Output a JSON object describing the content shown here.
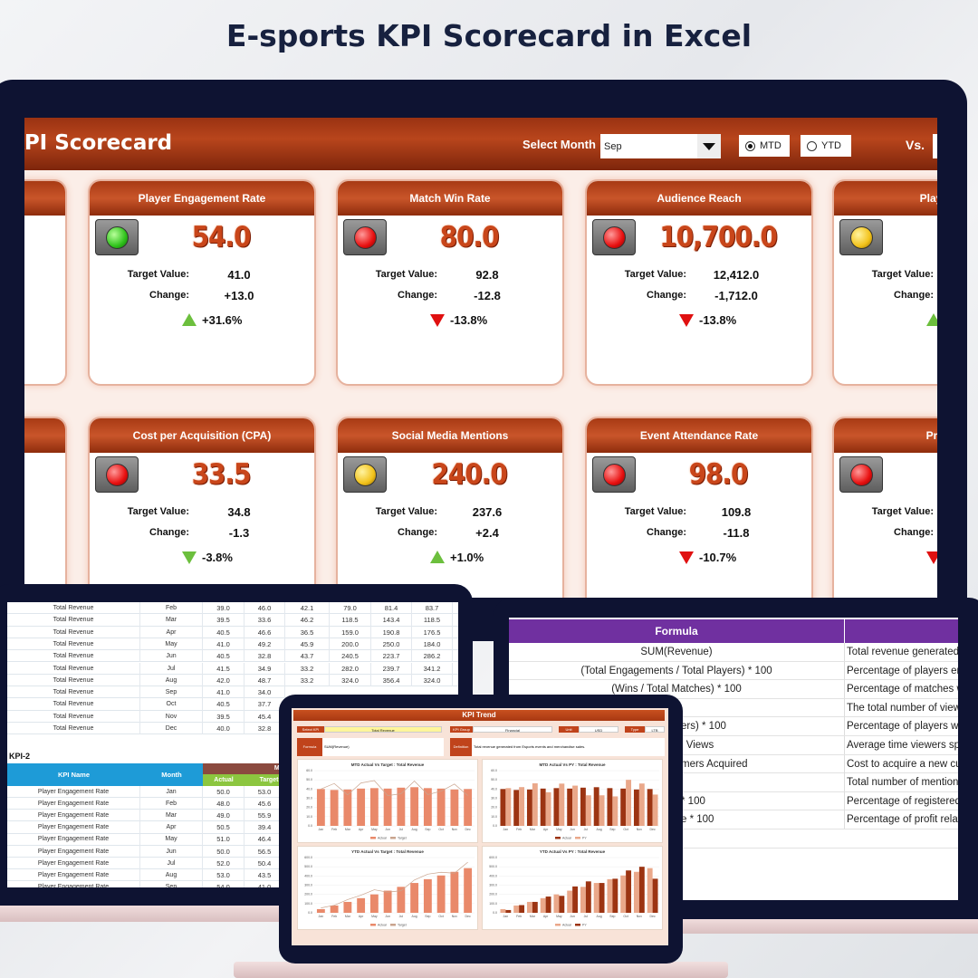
{
  "title": "E-sports KPI Scorecard in Excel",
  "dashboard": {
    "title": "KPI Scorecard",
    "select_month_label": "Select Month",
    "month_value": "Sep",
    "mode_options": [
      {
        "label": "MTD",
        "selected": true
      },
      {
        "label": "YTD",
        "selected": false
      }
    ],
    "vs_label": "Vs.",
    "target_label": "Target Value:",
    "change_label": "Change:",
    "colors": {
      "up": "#6cbf3d",
      "down": "#e01010",
      "green_light": "#3fcf2a",
      "red_light": "#e81010",
      "yellow_light": "#f2c21a"
    },
    "cards": [
      {
        "title": "Player Engagement Rate",
        "value": "54.0",
        "target": "41.0",
        "change": "+13.0",
        "pct": "+31.6%",
        "direction": "up",
        "light": "green"
      },
      {
        "title": "Match Win Rate",
        "value": "80.0",
        "target": "92.8",
        "change": "-12.8",
        "pct": "-13.8%",
        "direction": "down",
        "light": "red"
      },
      {
        "title": "Audience Reach",
        "value": "10,700.0",
        "target": "12,412.0",
        "change": "-1,712.0",
        "pct": "-13.8%",
        "direction": "down",
        "light": "red"
      },
      {
        "title": "Player Ret",
        "value": "",
        "target": "",
        "change": "",
        "pct": "",
        "direction": "up",
        "light": "yellow"
      },
      {
        "title": "Cost per Acquisition (CPA)",
        "value": "33.5",
        "target": "34.8",
        "change": "-1.3",
        "pct": "-3.8%",
        "direction": "down-good",
        "light": "red"
      },
      {
        "title": "Social Media Mentions",
        "value": "240.0",
        "target": "237.6",
        "change": "+2.4",
        "pct": "+1.0%",
        "direction": "up",
        "light": "yellow"
      },
      {
        "title": "Event Attendance Rate",
        "value": "98.0",
        "target": "109.8",
        "change": "-11.8",
        "pct": "-10.7%",
        "direction": "down",
        "light": "red"
      },
      {
        "title": "Profit M",
        "value": "",
        "target": "",
        "change": "",
        "pct": "",
        "direction": "down",
        "light": "red"
      }
    ]
  },
  "data_sheet": {
    "kpi1_rows": [
      {
        "name": "Total Revenue",
        "month": "Feb",
        "v": [
          "39.0",
          "46.0",
          "42.1",
          "79.0",
          "81.4",
          "83.7"
        ]
      },
      {
        "name": "Total Revenue",
        "month": "Mar",
        "v": [
          "39.5",
          "33.6",
          "46.2",
          "118.5",
          "143.4",
          "118.5"
        ]
      },
      {
        "name": "Total Revenue",
        "month": "Apr",
        "v": [
          "40.5",
          "46.6",
          "36.5",
          "159.0",
          "190.8",
          "176.5"
        ]
      },
      {
        "name": "Total Revenue",
        "month": "May",
        "v": [
          "41.0",
          "49.2",
          "45.9",
          "200.0",
          "250.0",
          "184.0"
        ]
      },
      {
        "name": "Total Revenue",
        "month": "Jun",
        "v": [
          "40.5",
          "32.8",
          "43.7",
          "240.5",
          "223.7",
          "286.2"
        ]
      },
      {
        "name": "Total Revenue",
        "month": "Jul",
        "v": [
          "41.5",
          "34.9",
          "33.2",
          "282.0",
          "239.7",
          "341.2"
        ]
      },
      {
        "name": "Total Revenue",
        "month": "Aug",
        "v": [
          "42.0",
          "48.7",
          "33.2",
          "324.0",
          "356.4",
          "324.0"
        ]
      },
      {
        "name": "Total Revenue",
        "month": "Sep",
        "v": [
          "41.0",
          "34.0"
        ]
      },
      {
        "name": "Total Revenue",
        "month": "Oct",
        "v": [
          "40.5",
          "37.7"
        ]
      },
      {
        "name": "Total Revenue",
        "month": "Nov",
        "v": [
          "39.5",
          "45.4"
        ]
      },
      {
        "name": "Total Revenue",
        "month": "Dec",
        "v": [
          "40.0",
          "32.8"
        ]
      }
    ],
    "kpi2_label": "KPI-2",
    "kpi2_headers": {
      "name": "KPI Name",
      "month": "Month",
      "group": "MTD",
      "actual": "Actual",
      "target": "Target"
    },
    "kpi2_rows": [
      {
        "name": "Player Engagement Rate",
        "month": "Jan",
        "v": [
          "50.0",
          "53.0"
        ]
      },
      {
        "name": "Player Engagement Rate",
        "month": "Feb",
        "v": [
          "48.0",
          "45.6"
        ]
      },
      {
        "name": "Player Engagement Rate",
        "month": "Mar",
        "v": [
          "49.0",
          "55.9"
        ]
      },
      {
        "name": "Player Engagement Rate",
        "month": "Apr",
        "v": [
          "50.5",
          "39.4"
        ]
      },
      {
        "name": "Player Engagement Rate",
        "month": "May",
        "v": [
          "51.0",
          "46.4"
        ]
      },
      {
        "name": "Player Engagement Rate",
        "month": "Jun",
        "v": [
          "50.0",
          "56.5"
        ]
      },
      {
        "name": "Player Engagement Rate",
        "month": "Jul",
        "v": [
          "52.0",
          "50.4"
        ]
      },
      {
        "name": "Player Engagement Rate",
        "month": "Aug",
        "v": [
          "53.0",
          "43.5"
        ]
      },
      {
        "name": "Player Engagement Rate",
        "month": "Sep",
        "v": [
          "54.0",
          "41.0"
        ]
      }
    ]
  },
  "definitions": {
    "header": "Formula",
    "rows": [
      {
        "formula": "SUM(Revenue)",
        "partial": false,
        "desc": "Total revenue generated f"
      },
      {
        "formula": "(Total Engagements / Total Players) * 100",
        "partial": false,
        "desc": "Percentage of players en"
      },
      {
        "formula": "(Wins / Total Matches) * 100",
        "partial": false,
        "desc": "Percentage of matches w"
      },
      {
        "formula": "",
        "partial": true,
        "desc": "The total number of view"
      },
      {
        "formula": "ers) * 100",
        "partial": true,
        "desc": "Percentage of players wh"
      },
      {
        "formula": "l Views",
        "partial": true,
        "desc": "Average time viewers spe"
      },
      {
        "formula": "mers Acquired",
        "partial": true,
        "desc": "Cost to acquire a new cu"
      },
      {
        "formula": "",
        "partial": true,
        "desc": "Total number of mention"
      },
      {
        "formula": "* 100",
        "partial": true,
        "desc": "Percentage of registered"
      },
      {
        "formula": "e * 100",
        "partial": true,
        "desc": "Percentage of profit relat"
      },
      {
        "formula": "",
        "partial": true,
        "desc": ""
      }
    ]
  },
  "trend": {
    "title": "KPI Trend",
    "select_kpi_label": "Select KPI",
    "select_kpi": "Total Revenue",
    "group_label": "KPI Group",
    "group": "Financial",
    "unit_label": "Unit",
    "unit": "USD",
    "type_label": "Type",
    "type": "LTB",
    "formula_label": "Formula",
    "formula": "SUM(Revenue)",
    "definition_label": "Definition",
    "definition": "Total revenue generated from Esports events and merchandise sales."
  },
  "chart_data": [
    {
      "type": "bar",
      "title": "MTD Actual Vs Target : Total Revenue",
      "categories": [
        "Jan",
        "Feb",
        "Mar",
        "Apr",
        "May",
        "Jun",
        "Jul",
        "Aug",
        "Sep",
        "Oct",
        "Nov",
        "Dec"
      ],
      "ylim": [
        0,
        60
      ],
      "yticks": [
        "0.0",
        "10.0",
        "20.0",
        "30.0",
        "40.0",
        "50.0",
        "60.0"
      ],
      "series": [
        {
          "name": "Actual",
          "kind": "bar",
          "color": "#e9896a",
          "values": [
            40,
            39,
            39.5,
            40.5,
            41,
            40.5,
            41.5,
            42,
            41,
            40.5,
            39.5,
            40
          ]
        },
        {
          "name": "Target",
          "kind": "line",
          "color": "#c9a48e",
          "values": [
            40,
            46,
            33.6,
            46.6,
            49.2,
            32.8,
            34.9,
            48.7,
            34,
            37.7,
            45.4,
            32.8
          ]
        }
      ]
    },
    {
      "type": "bar",
      "title": "MTD Actual Vs PY : Total Revenue",
      "categories": [
        "Jan",
        "Feb",
        "Mar",
        "Apr",
        "May",
        "Jun",
        "Jul",
        "Aug",
        "Sep",
        "Oct",
        "Nov",
        "Dec"
      ],
      "ylim": [
        0,
        60
      ],
      "yticks": [
        "0.0",
        "10.0",
        "20.0",
        "30.0",
        "40.0",
        "50.0",
        "60.0"
      ],
      "series": [
        {
          "name": "Actual",
          "kind": "bar",
          "color": "#9c3412",
          "values": [
            40,
            39,
            39.5,
            40.5,
            41,
            40.5,
            41.5,
            42,
            41,
            40.5,
            39.5,
            40
          ]
        },
        {
          "name": "PY",
          "kind": "bar",
          "color": "#eaa88a",
          "values": [
            41,
            42.1,
            46.2,
            36.5,
            45.9,
            43.7,
            33.2,
            33.2,
            32,
            50,
            46,
            34
          ]
        }
      ]
    },
    {
      "type": "bar",
      "title": "YTD Actual Vs Target : Total Revenue",
      "categories": [
        "Jan",
        "Feb",
        "Mar",
        "Apr",
        "May",
        "Jun",
        "Jul",
        "Aug",
        "Sep",
        "Oct",
        "Nov",
        "Dec"
      ],
      "ylim": [
        0,
        600
      ],
      "yticks": [
        "0.0",
        "100.0",
        "200.0",
        "300.0",
        "400.0",
        "500.0",
        "600.0"
      ],
      "series": [
        {
          "name": "Actual",
          "kind": "bar",
          "color": "#e9896a",
          "values": [
            40,
            79,
            118.5,
            159,
            200,
            240.5,
            282,
            324,
            365,
            405.5,
            445,
            485
          ]
        },
        {
          "name": "Target",
          "kind": "line",
          "color": "#c9a48e",
          "values": [
            53,
            81.4,
            143.4,
            190.8,
            250,
            223.7,
            239.7,
            356.4,
            420,
            440,
            430,
            550
          ]
        }
      ]
    },
    {
      "type": "bar",
      "title": "YTD Actual Vs PY : Total Revenue",
      "categories": [
        "Jan",
        "Feb",
        "Mar",
        "Apr",
        "May",
        "Jun",
        "Jul",
        "Aug",
        "Sep",
        "Oct",
        "Nov",
        "Dec"
      ],
      "ylim": [
        0,
        600
      ],
      "yticks": [
        "0.0",
        "100.0",
        "200.0",
        "300.0",
        "400.0",
        "500.0",
        "600.0"
      ],
      "series": [
        {
          "name": "Actual",
          "kind": "bar",
          "color": "#eaa88a",
          "values": [
            40,
            79,
            118.5,
            159,
            200,
            240.5,
            282,
            324,
            365,
            405.5,
            445,
            485
          ]
        },
        {
          "name": "PY",
          "kind": "bar",
          "color": "#9c3412",
          "values": [
            30,
            83.7,
            118.5,
            176.5,
            184,
            286.2,
            341.2,
            324,
            370,
            460,
            500,
            370
          ]
        }
      ]
    }
  ]
}
